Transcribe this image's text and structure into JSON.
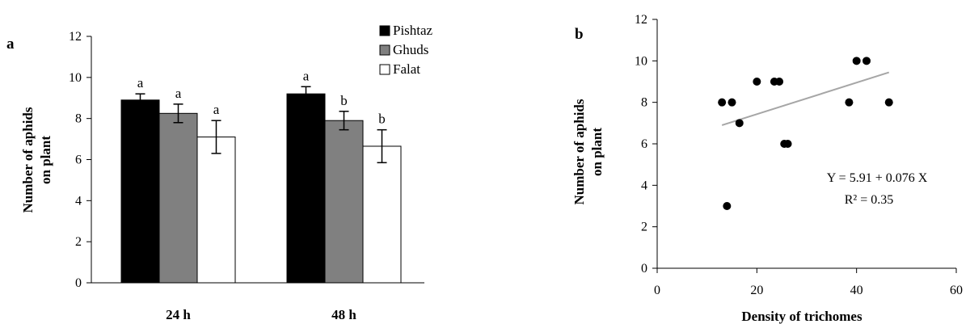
{
  "chart_data": [
    {
      "type": "bar",
      "panel": "a",
      "ylabel_line1": "Number of aphids",
      "ylabel_line2": "on plant",
      "ylim": [
        0,
        12
      ],
      "yticks": [
        "0",
        "2",
        "4",
        "6",
        "8",
        "10",
        "12"
      ],
      "categories": [
        "24 h",
        "48 h"
      ],
      "legend_position": "top-right",
      "series": [
        {
          "name": "Pishtaz",
          "color": "#000000",
          "values": [
            8.9,
            9.2
          ],
          "errors": [
            0.3,
            0.35
          ],
          "letters": [
            "a",
            "a"
          ]
        },
        {
          "name": "Ghuds",
          "color": "#808080",
          "values": [
            8.25,
            7.9
          ],
          "errors": [
            0.45,
            0.45
          ],
          "letters": [
            "a",
            "b"
          ]
        },
        {
          "name": "Falat",
          "color": "#ffffff",
          "values": [
            7.1,
            6.65
          ],
          "errors": [
            0.8,
            0.8
          ],
          "letters": [
            "a",
            "b"
          ]
        }
      ]
    },
    {
      "type": "scatter",
      "panel": "b",
      "xlabel": "Density of trichomes",
      "ylabel_line1": "Number of aphids",
      "ylabel_line2": "on plant",
      "xlim": [
        0,
        60
      ],
      "ylim": [
        0,
        12
      ],
      "xticks": [
        "0",
        "20",
        "40",
        "60"
      ],
      "yticks": [
        "0",
        "2",
        "4",
        "6",
        "8",
        "10",
        "12"
      ],
      "points": [
        {
          "x": 13,
          "y": 8
        },
        {
          "x": 15,
          "y": 8
        },
        {
          "x": 16.5,
          "y": 7
        },
        {
          "x": 14,
          "y": 3
        },
        {
          "x": 20,
          "y": 9
        },
        {
          "x": 23.5,
          "y": 9
        },
        {
          "x": 24.5,
          "y": 9
        },
        {
          "x": 25.5,
          "y": 6
        },
        {
          "x": 26.2,
          "y": 6
        },
        {
          "x": 38.5,
          "y": 8
        },
        {
          "x": 40,
          "y": 10
        },
        {
          "x": 42,
          "y": 10
        },
        {
          "x": 46.5,
          "y": 8
        }
      ],
      "trendline": {
        "intercept": 5.91,
        "slope": 0.076,
        "x_start": 13,
        "x_end": 46.5,
        "color": "#a6a6a6"
      },
      "equation": "Y = 5.91 + 0.076 X",
      "r_squared": "R² = 0.35"
    }
  ]
}
